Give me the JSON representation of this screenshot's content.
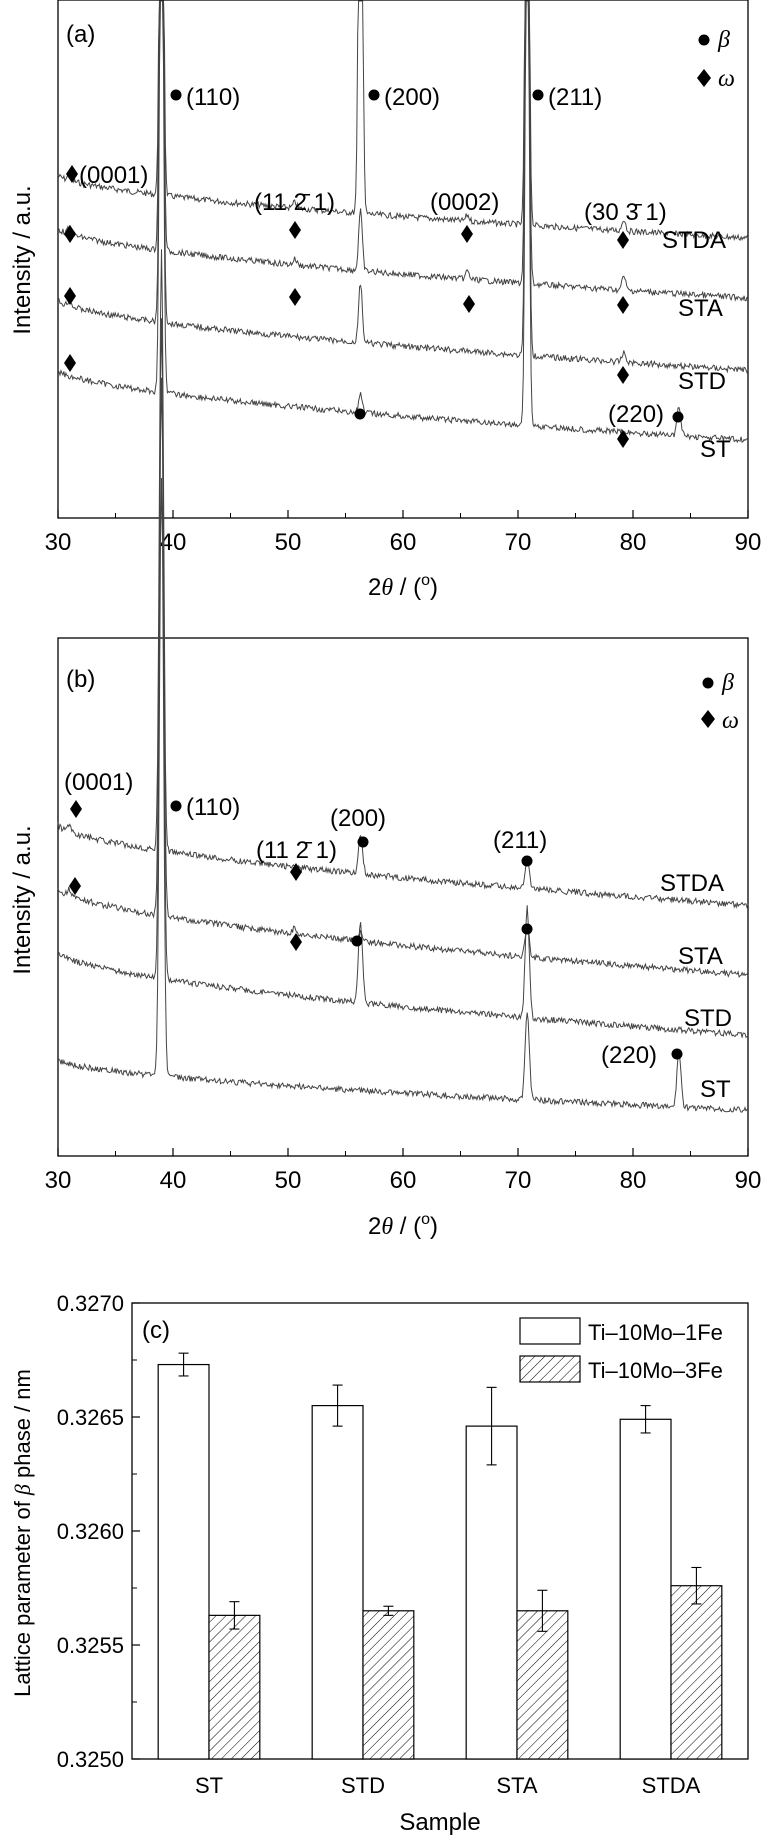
{
  "chart_data": [
    {
      "type": "line",
      "panel_label": "(a)",
      "xlabel_prefix": "2",
      "xlabel_theta": "θ",
      "xlabel_suffix": " / (",
      "xlabel_deg": "o",
      "xlabel_close": ")",
      "ylabel": "Intensity / a.u.",
      "xlim": [
        30,
        90
      ],
      "xticks": [
        "30",
        "40",
        "50",
        "60",
        "70",
        "80",
        "90"
      ],
      "legend": [
        {
          "symbol": "dot",
          "label": "β"
        },
        {
          "symbol": "diamond",
          "label": "ω"
        }
      ],
      "series": [
        {
          "name": "STDA",
          "peaks": [
            39,
            56.3,
            70.8,
            79.2,
            65.6,
            50.6,
            31
          ]
        },
        {
          "name": "STA",
          "peaks": [
            39,
            56.3,
            70.8,
            79.2,
            65.6,
            50.6,
            31
          ]
        },
        {
          "name": "STD",
          "peaks": [
            39,
            56.3,
            70.8,
            79.2,
            31
          ]
        },
        {
          "name": "ST",
          "peaks": [
            39,
            56.3,
            70.8,
            84
          ]
        }
      ],
      "annotations": [
        {
          "text": "(0001)",
          "x": 31
        },
        {
          "text": "(110)",
          "x": 39
        },
        {
          "text": "(200)",
          "x": 56.3
        },
        {
          "text": "(211)",
          "x": 70.8
        },
        {
          "text": "(11 2̄ 1)",
          "x": 50.6
        },
        {
          "text": "(0002)",
          "x": 65.6
        },
        {
          "text": "(30 3̄ 1)",
          "x": 79.2
        },
        {
          "text": "(220)",
          "x": 84
        }
      ]
    },
    {
      "type": "line",
      "panel_label": "(b)",
      "xlabel_prefix": "2",
      "xlabel_theta": "θ",
      "xlabel_suffix": " / (",
      "xlabel_deg": "o",
      "xlabel_close": ")",
      "ylabel": "Intensity / a.u.",
      "xlim": [
        30,
        90
      ],
      "xticks": [
        "30",
        "40",
        "50",
        "60",
        "70",
        "80",
        "90"
      ],
      "legend": [
        {
          "symbol": "dot",
          "label": "β"
        },
        {
          "symbol": "diamond",
          "label": "ω"
        }
      ],
      "series": [
        {
          "name": "STDA",
          "peaks": [
            39,
            56.3,
            70.8,
            31
          ]
        },
        {
          "name": "STA",
          "peaks": [
            39,
            56.3,
            70.8,
            50.6,
            31
          ]
        },
        {
          "name": "STD",
          "peaks": [
            39,
            56.3,
            70.8
          ]
        },
        {
          "name": "ST",
          "peaks": [
            39,
            70.8,
            84
          ]
        }
      ],
      "annotations": [
        {
          "text": "(0001)",
          "x": 31
        },
        {
          "text": "(110)",
          "x": 39
        },
        {
          "text": "(200)",
          "x": 56.3
        },
        {
          "text": "(11 2̄ 1)",
          "x": 50.6
        },
        {
          "text": "(211)",
          "x": 70.8
        },
        {
          "text": "(220)",
          "x": 84
        }
      ]
    },
    {
      "type": "bar",
      "panel_label": "(c)",
      "categories": [
        "ST",
        "STD",
        "STA",
        "STDA"
      ],
      "series": [
        {
          "name": "Ti–10Mo–1Fe",
          "values": [
            0.32673,
            0.32655,
            0.32646,
            0.32649
          ],
          "errors": [
            5e-05,
            9e-05,
            0.00017,
            6e-05
          ],
          "pattern": "open"
        },
        {
          "name": "Ti–10Mo–3Fe",
          "values": [
            0.32563,
            0.32565,
            0.32565,
            0.32576
          ],
          "errors": [
            6e-05,
            2e-05,
            9e-05,
            8e-05
          ],
          "pattern": "hatched"
        }
      ],
      "xlabel": "Sample",
      "ylabel_prefix": "Lattice parameter of ",
      "ylabel_beta": "β",
      "ylabel_suffix": " phase / nm",
      "ylim": [
        0.325,
        0.327
      ],
      "yticks": [
        "0.3250",
        "0.3255",
        "0.3260",
        "0.3265",
        "0.3270"
      ],
      "legend_position": "top-right"
    }
  ]
}
